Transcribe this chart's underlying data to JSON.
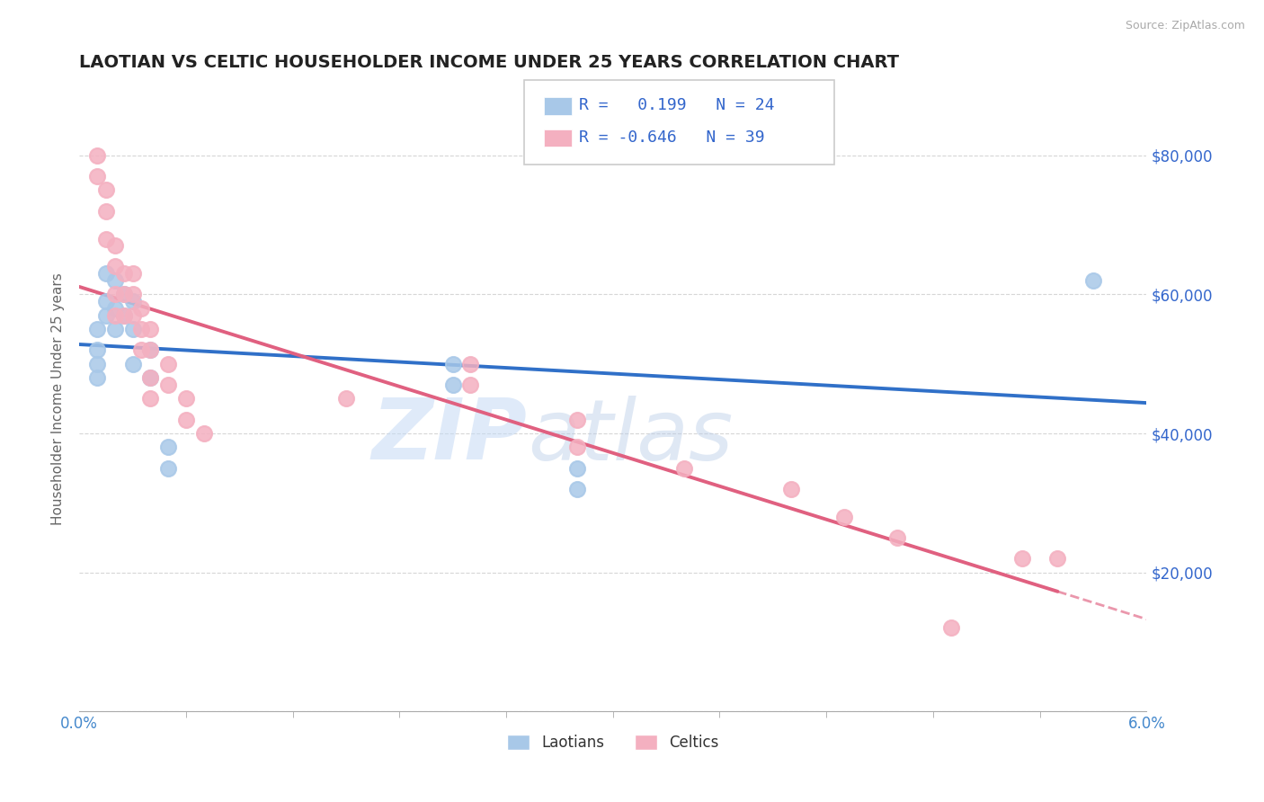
{
  "title": "LAOTIAN VS CELTIC HOUSEHOLDER INCOME UNDER 25 YEARS CORRELATION CHART",
  "source": "Source: ZipAtlas.com",
  "ylabel": "Householder Income Under 25 years",
  "xlim": [
    0.0,
    0.06
  ],
  "ylim": [
    0,
    90000
  ],
  "yticks": [
    0,
    20000,
    40000,
    60000,
    80000
  ],
  "ytick_labels": [
    "",
    "$20,000",
    "$40,000",
    "$60,000",
    "$80,000"
  ],
  "legend_r_laotian": "0.199",
  "legend_n_laotian": "24",
  "legend_r_celtic": "-0.646",
  "legend_n_celtic": "39",
  "laotian_color": "#a8c8e8",
  "celtic_color": "#f4b0c0",
  "laotian_line_color": "#3070c8",
  "celtic_line_color": "#e06080",
  "watermark_zip": "ZIP",
  "watermark_atlas": "atlas",
  "laotian_points": [
    [
      0.001,
      55000
    ],
    [
      0.001,
      52000
    ],
    [
      0.001,
      50000
    ],
    [
      0.001,
      48000
    ],
    [
      0.0015,
      63000
    ],
    [
      0.0015,
      59000
    ],
    [
      0.0015,
      57000
    ],
    [
      0.002,
      62000
    ],
    [
      0.002,
      58000
    ],
    [
      0.002,
      55000
    ],
    [
      0.0025,
      60000
    ],
    [
      0.0025,
      57000
    ],
    [
      0.003,
      59000
    ],
    [
      0.003,
      55000
    ],
    [
      0.003,
      50000
    ],
    [
      0.004,
      52000
    ],
    [
      0.004,
      48000
    ],
    [
      0.005,
      38000
    ],
    [
      0.005,
      35000
    ],
    [
      0.021,
      50000
    ],
    [
      0.021,
      47000
    ],
    [
      0.028,
      35000
    ],
    [
      0.028,
      32000
    ],
    [
      0.057,
      62000
    ]
  ],
  "celtic_points": [
    [
      0.001,
      80000
    ],
    [
      0.001,
      77000
    ],
    [
      0.0015,
      75000
    ],
    [
      0.0015,
      72000
    ],
    [
      0.0015,
      68000
    ],
    [
      0.002,
      67000
    ],
    [
      0.002,
      64000
    ],
    [
      0.002,
      60000
    ],
    [
      0.002,
      57000
    ],
    [
      0.0025,
      63000
    ],
    [
      0.0025,
      60000
    ],
    [
      0.0025,
      57000
    ],
    [
      0.003,
      63000
    ],
    [
      0.003,
      60000
    ],
    [
      0.003,
      57000
    ],
    [
      0.0035,
      58000
    ],
    [
      0.0035,
      55000
    ],
    [
      0.0035,
      52000
    ],
    [
      0.004,
      55000
    ],
    [
      0.004,
      52000
    ],
    [
      0.004,
      48000
    ],
    [
      0.004,
      45000
    ],
    [
      0.005,
      50000
    ],
    [
      0.005,
      47000
    ],
    [
      0.006,
      45000
    ],
    [
      0.006,
      42000
    ],
    [
      0.007,
      40000
    ],
    [
      0.015,
      45000
    ],
    [
      0.022,
      50000
    ],
    [
      0.022,
      47000
    ],
    [
      0.028,
      42000
    ],
    [
      0.028,
      38000
    ],
    [
      0.034,
      35000
    ],
    [
      0.04,
      32000
    ],
    [
      0.043,
      28000
    ],
    [
      0.046,
      25000
    ],
    [
      0.049,
      12000
    ],
    [
      0.053,
      22000
    ],
    [
      0.055,
      22000
    ]
  ]
}
